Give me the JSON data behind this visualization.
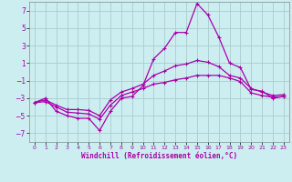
{
  "title": "",
  "xlabel": "Windchill (Refroidissement éolien,°C)",
  "background_color": "#cceef0",
  "grid_color": "#aacccc",
  "line_color": "#aa00aa",
  "x_ticks": [
    0,
    1,
    2,
    3,
    4,
    5,
    6,
    7,
    8,
    9,
    10,
    11,
    12,
    13,
    14,
    15,
    16,
    17,
    18,
    19,
    20,
    21,
    22,
    23
  ],
  "ylim": [
    -8,
    8
  ],
  "xlim": [
    -0.5,
    23.5
  ],
  "yticks": [
    -7,
    -5,
    -3,
    -1,
    1,
    3,
    5,
    7
  ],
  "series1_x": [
    0,
    1,
    2,
    3,
    4,
    5,
    6,
    7,
    8,
    9,
    10,
    11,
    12,
    13,
    14,
    15,
    16,
    17,
    18,
    19,
    20,
    21,
    22,
    23
  ],
  "series1_y": [
    -3.5,
    -3.0,
    -4.5,
    -5.0,
    -5.3,
    -5.3,
    -6.7,
    -4.5,
    -3.0,
    -2.8,
    -1.6,
    1.5,
    2.7,
    4.5,
    4.5,
    7.8,
    6.5,
    4.0,
    1.0,
    0.5,
    -2.0,
    -2.2,
    -3.0,
    -2.8
  ],
  "series2_x": [
    0,
    1,
    2,
    3,
    4,
    5,
    6,
    7,
    8,
    9,
    10,
    11,
    12,
    13,
    14,
    15,
    16,
    17,
    18,
    19,
    20,
    21,
    22,
    23
  ],
  "series2_y": [
    -3.5,
    -3.2,
    -3.8,
    -4.3,
    -4.3,
    -4.4,
    -5.0,
    -3.2,
    -2.3,
    -1.9,
    -1.4,
    -0.4,
    0.1,
    0.7,
    0.9,
    1.3,
    1.1,
    0.6,
    -0.4,
    -0.7,
    -1.9,
    -2.3,
    -2.7,
    -2.6
  ],
  "series3_x": [
    0,
    1,
    2,
    3,
    4,
    5,
    6,
    7,
    8,
    9,
    10,
    11,
    12,
    13,
    14,
    15,
    16,
    17,
    18,
    19,
    20,
    21,
    22,
    23
  ],
  "series3_y": [
    -3.5,
    -3.4,
    -4.0,
    -4.6,
    -4.7,
    -4.8,
    -5.4,
    -3.8,
    -2.7,
    -2.3,
    -1.9,
    -1.4,
    -1.2,
    -0.9,
    -0.7,
    -0.4,
    -0.4,
    -0.4,
    -0.7,
    -1.1,
    -2.4,
    -2.7,
    -2.9,
    -2.8
  ]
}
